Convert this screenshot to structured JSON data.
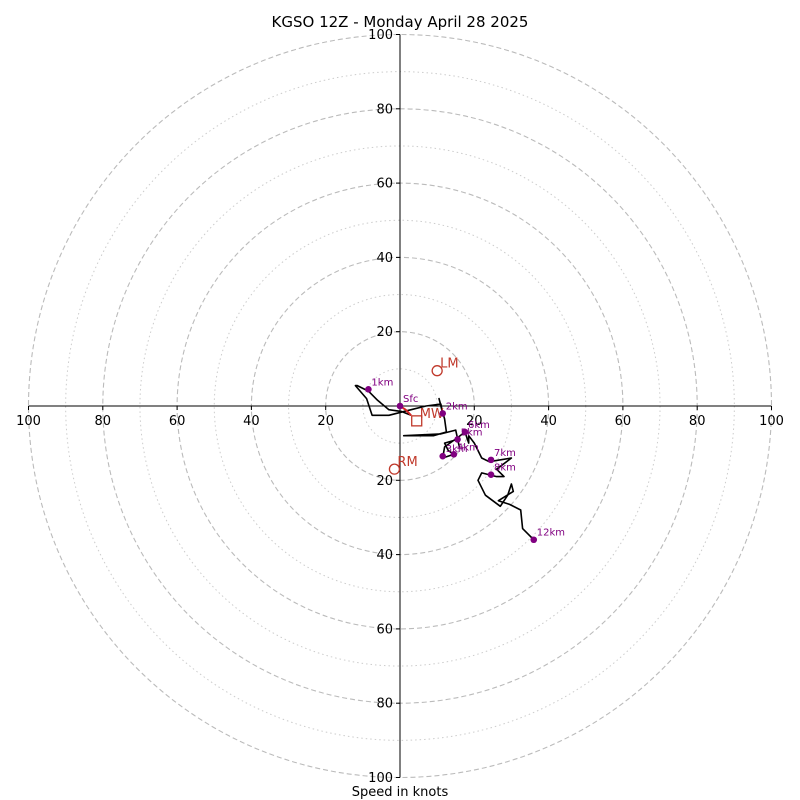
{
  "chart_data": {
    "type": "hodograph",
    "title": "KGSO 12Z - Monday April 28 2025",
    "xlabel": "Speed in knots",
    "units": "knots",
    "range": [
      -100,
      100
    ],
    "rings_major": [
      20,
      40,
      60,
      80,
      100
    ],
    "rings_minor": [
      10,
      30,
      50,
      70,
      90
    ],
    "x_ticks": [
      {
        "value": -100,
        "label": "100"
      },
      {
        "value": -80,
        "label": "80"
      },
      {
        "value": -60,
        "label": "60"
      },
      {
        "value": -40,
        "label": "40"
      },
      {
        "value": -20,
        "label": "20"
      },
      {
        "value": 20,
        "label": "20"
      },
      {
        "value": 40,
        "label": "40"
      },
      {
        "value": 60,
        "label": "60"
      },
      {
        "value": 80,
        "label": "80"
      },
      {
        "value": 100,
        "label": "100"
      }
    ],
    "y_ticks": [
      {
        "value": 100,
        "label": "100"
      },
      {
        "value": 80,
        "label": "80"
      },
      {
        "value": 60,
        "label": "60"
      },
      {
        "value": 40,
        "label": "40"
      },
      {
        "value": 20,
        "label": "20"
      },
      {
        "value": -20,
        "label": "20"
      },
      {
        "value": -40,
        "label": "40"
      },
      {
        "value": -60,
        "label": "60"
      },
      {
        "value": -80,
        "label": "80"
      },
      {
        "value": -100,
        "label": "100"
      }
    ],
    "trace_color": "#000000",
    "near_surface_color": "#d62728",
    "height_marker_color": "#800080",
    "motion_color": "#c0392b",
    "trace_near_surface": [
      {
        "u": 0,
        "v": 0
      },
      {
        "u": 1.5,
        "v": -1
      },
      {
        "u": 3,
        "v": -2.5
      }
    ],
    "trace": [
      {
        "u": 3,
        "v": -2.5
      },
      {
        "u": 0.5,
        "v": -1.5
      },
      {
        "u": -3,
        "v": -1
      },
      {
        "u": -6,
        "v": 1.5
      },
      {
        "u": -8.5,
        "v": 4
      },
      {
        "u": -11.5,
        "v": 5.5
      },
      {
        "u": -12,
        "v": 5.5
      },
      {
        "u": -9,
        "v": 2
      },
      {
        "u": -7.5,
        "v": -2.5
      },
      {
        "u": -3,
        "v": -2.5
      },
      {
        "u": 3,
        "v": -1
      },
      {
        "u": 7,
        "v": 0
      },
      {
        "u": 11,
        "v": 0.5
      },
      {
        "u": 11.5,
        "v": -2
      },
      {
        "u": 10.5,
        "v": 2
      },
      {
        "u": 12,
        "v": -3.5
      },
      {
        "u": 12.5,
        "v": -7
      },
      {
        "u": 9,
        "v": -8
      },
      {
        "u": 5,
        "v": -8
      },
      {
        "u": 1,
        "v": -8
      },
      {
        "u": 11,
        "v": -7.5
      },
      {
        "u": 15,
        "v": -6.5
      },
      {
        "u": 16,
        "v": -11
      },
      {
        "u": 15.5,
        "v": -9
      },
      {
        "u": 12,
        "v": -10
      },
      {
        "u": 13,
        "v": -12
      },
      {
        "u": 14.5,
        "v": -13
      },
      {
        "u": 11.5,
        "v": -14
      },
      {
        "u": 12,
        "v": -11
      },
      {
        "u": 15.5,
        "v": -8.5
      },
      {
        "u": 17.5,
        "v": -7
      },
      {
        "u": 18.5,
        "v": -10
      },
      {
        "u": 18.5,
        "v": -8
      },
      {
        "u": 20,
        "v": -10
      },
      {
        "u": 22,
        "v": -14
      },
      {
        "u": 24,
        "v": -15
      },
      {
        "u": 30,
        "v": -14
      },
      {
        "u": 26,
        "v": -17
      },
      {
        "u": 28,
        "v": -19
      },
      {
        "u": 26,
        "v": -19
      },
      {
        "u": 22,
        "v": -18
      },
      {
        "u": 21,
        "v": -20
      },
      {
        "u": 23,
        "v": -24
      },
      {
        "u": 27,
        "v": -27
      },
      {
        "u": 29,
        "v": -24
      },
      {
        "u": 30,
        "v": -21
      },
      {
        "u": 30.5,
        "v": -23
      },
      {
        "u": 26.5,
        "v": -25.5
      },
      {
        "u": 29.5,
        "v": -26.5
      },
      {
        "u": 32.5,
        "v": -28
      },
      {
        "u": 33,
        "v": -33
      },
      {
        "u": 36,
        "v": -36
      }
    ],
    "height_markers": [
      {
        "label": "Sfc",
        "u": 0,
        "v": 0
      },
      {
        "label": "1km",
        "u": -8.5,
        "v": 4.5
      },
      {
        "label": "2km",
        "u": 11.5,
        "v": -2
      },
      {
        "label": "3km",
        "u": 11.5,
        "v": -13.5
      },
      {
        "label": "4km",
        "u": 14.5,
        "v": -13
      },
      {
        "label": "5km",
        "u": 15.5,
        "v": -9
      },
      {
        "label": "6km",
        "u": 17.5,
        "v": -7
      },
      {
        "label": "7km",
        "u": 24.5,
        "v": -14.5
      },
      {
        "label": "8km",
        "u": 24.5,
        "v": -18.5
      },
      {
        "label": "12km",
        "u": 36,
        "v": -36
      }
    ],
    "storm_motions": [
      {
        "label": "LM",
        "u": 10,
        "v": 9.5,
        "marker": "circle"
      },
      {
        "label": "MW",
        "u": 4.5,
        "v": -4,
        "marker": "square"
      },
      {
        "label": "RM",
        "u": -1.5,
        "v": -17,
        "marker": "circle"
      }
    ]
  }
}
